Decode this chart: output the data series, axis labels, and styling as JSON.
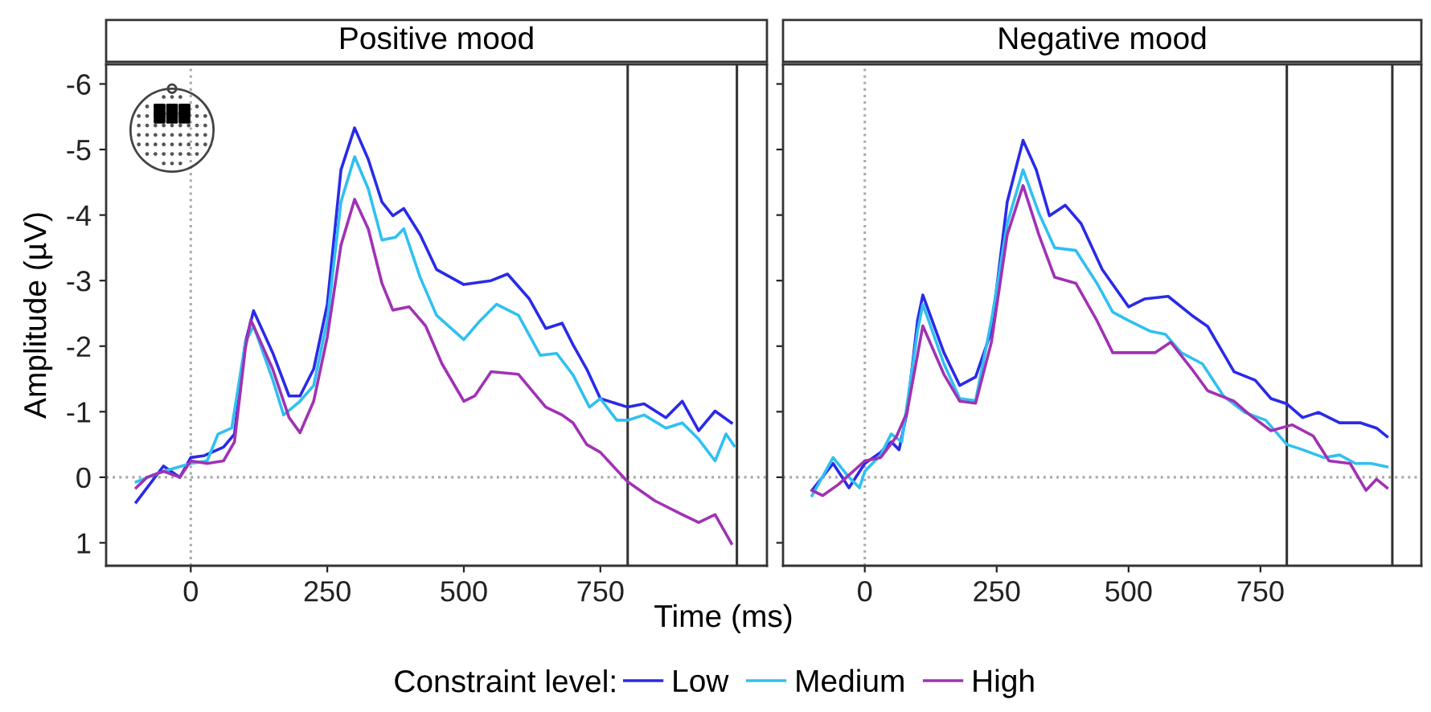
{
  "chart_data": [
    {
      "type": "line",
      "title": "Positive mood",
      "ylabel": "Amplitude (µV)",
      "xlabel": "Time (ms)",
      "legend_title": "Constraint level:",
      "legend": "bottom",
      "grid": false,
      "xlim": [
        -155,
        1055
      ],
      "xticks": [
        0,
        250,
        500,
        750
      ],
      "ylim": [
        1.35,
        -6.3
      ],
      "yticks": [
        -6,
        -5,
        -4,
        -3,
        -2,
        -1,
        0,
        1
      ],
      "ref_lines": [
        {
          "axis": "x",
          "value": 0,
          "color": "#aaaaaa",
          "line_style": "dotted"
        },
        {
          "axis": "y",
          "value": 0,
          "color": "#aaaaaa",
          "line_style": "dotted"
        },
        {
          "axis": "x",
          "value": 800,
          "color": "#333333",
          "line_style": "solid"
        },
        {
          "axis": "x",
          "value": 1000,
          "color": "#333333",
          "line_style": "solid"
        }
      ],
      "series": [
        {
          "name": "Low",
          "color": "#2a2ae8",
          "x": [
            -100,
            -50,
            -20,
            0,
            25,
            60,
            80,
            100,
            115,
            150,
            180,
            200,
            225,
            250,
            275,
            300,
            325,
            350,
            370,
            390,
            420,
            450,
            500,
            550,
            580,
            620,
            650,
            680,
            700,
            725,
            750,
            800,
            830,
            870,
            900,
            930,
            960,
            990
          ],
          "values": [
            0.38,
            -0.17,
            0,
            -0.3,
            -0.33,
            -0.46,
            -0.66,
            -2.06,
            -2.54,
            -1.9,
            -1.24,
            -1.24,
            -1.65,
            -2.64,
            -4.69,
            -5.33,
            -4.85,
            -4.2,
            -3.99,
            -4.1,
            -3.7,
            -3.17,
            -2.94,
            -3.0,
            -3.1,
            -2.72,
            -2.27,
            -2.35,
            -2.02,
            -1.65,
            -1.2,
            -1.07,
            -1.12,
            -0.91,
            -1.16,
            -0.71,
            -1.01,
            -0.83
          ]
        },
        {
          "name": "Medium",
          "color": "#30c0f0",
          "x": [
            -100,
            -50,
            0,
            30,
            50,
            75,
            100,
            115,
            150,
            170,
            200,
            225,
            250,
            275,
            300,
            325,
            350,
            375,
            390,
            420,
            450,
            500,
            530,
            560,
            600,
            640,
            670,
            700,
            730,
            750,
            780,
            800,
            830,
            870,
            900,
            930,
            960,
            980,
            995
          ],
          "values": [
            0.07,
            -0.09,
            -0.21,
            -0.25,
            -0.66,
            -0.75,
            -2.06,
            -2.31,
            -1.49,
            -0.95,
            -1.16,
            -1.4,
            -2.39,
            -4.2,
            -4.89,
            -4.4,
            -3.62,
            -3.66,
            -3.79,
            -3.05,
            -2.47,
            -2.1,
            -2.39,
            -2.64,
            -2.47,
            -1.86,
            -1.89,
            -1.56,
            -1.07,
            -1.2,
            -0.87,
            -0.87,
            -0.95,
            -0.75,
            -0.83,
            -0.58,
            -0.25,
            -0.66,
            -0.48
          ]
        },
        {
          "name": "High",
          "color": "#a032b4",
          "x": [
            -100,
            -80,
            -50,
            -20,
            0,
            30,
            60,
            80,
            100,
            110,
            150,
            180,
            200,
            225,
            250,
            275,
            300,
            325,
            350,
            370,
            400,
            430,
            460,
            500,
            520,
            550,
            600,
            650,
            680,
            700,
            725,
            750,
            800,
            850,
            900,
            930,
            960,
            990
          ],
          "values": [
            0.16,
            0,
            -0.09,
            0,
            -0.25,
            -0.21,
            -0.25,
            -0.54,
            -1.97,
            -2.4,
            -1.65,
            -0.91,
            -0.68,
            -1.16,
            -2.14,
            -3.54,
            -4.24,
            -3.79,
            -2.96,
            -2.55,
            -2.6,
            -2.31,
            -1.73,
            -1.16,
            -1.24,
            -1.61,
            -1.57,
            -1.07,
            -0.95,
            -0.83,
            -0.5,
            -0.38,
            0.07,
            0.36,
            0.57,
            0.69,
            0.57,
            1.01
          ]
        }
      ]
    },
    {
      "type": "line",
      "title": "Negative mood",
      "tick_labels": "x",
      "grid": false,
      "xlim": [
        -155,
        1055
      ],
      "xticks": [
        0,
        250,
        500,
        750
      ],
      "ylim": [
        1.35,
        -6.3
      ],
      "yticks": [
        -6,
        -5,
        -4,
        -3,
        -2,
        -1,
        0,
        1
      ],
      "ref_lines": [
        {
          "axis": "x",
          "value": 0,
          "color": "#aaaaaa",
          "line_style": "dotted"
        },
        {
          "axis": "y",
          "value": 0,
          "color": "#aaaaaa",
          "line_style": "dotted"
        },
        {
          "axis": "x",
          "value": 800,
          "color": "#333333",
          "line_style": "solid"
        },
        {
          "axis": "x",
          "value": 1000,
          "color": "#333333",
          "line_style": "solid"
        }
      ],
      "series": [
        {
          "color": "#2a2ae8",
          "x": [
            -100,
            -60,
            -30,
            0,
            30,
            50,
            65,
            80,
            100,
            110,
            150,
            180,
            210,
            240,
            270,
            300,
            325,
            350,
            380,
            410,
            450,
            500,
            530,
            575,
            620,
            650,
            700,
            740,
            770,
            800,
            830,
            860,
            900,
            940,
            970,
            990
          ],
          "values": [
            0.2,
            -0.21,
            0.16,
            -0.21,
            -0.38,
            -0.54,
            -0.42,
            -0.99,
            -2.39,
            -2.78,
            -1.9,
            -1.4,
            -1.53,
            -2.23,
            -4.2,
            -5.14,
            -4.69,
            -3.99,
            -4.15,
            -3.87,
            -3.17,
            -2.6,
            -2.72,
            -2.76,
            -2.47,
            -2.3,
            -1.61,
            -1.48,
            -1.2,
            -1.12,
            -0.91,
            -0.99,
            -0.83,
            -0.83,
            -0.75,
            -0.62
          ]
        },
        {
          "color": "#30c0f0",
          "x": [
            -100,
            -60,
            -30,
            -10,
            0,
            30,
            50,
            70,
            100,
            110,
            150,
            180,
            210,
            240,
            270,
            300,
            330,
            360,
            400,
            440,
            470,
            500,
            540,
            570,
            600,
            640,
            680,
            720,
            760,
            800,
            830,
            870,
            900,
            930,
            960,
            990
          ],
          "values": [
            0.28,
            -0.3,
            0,
            0.16,
            -0.09,
            -0.34,
            -0.66,
            -0.54,
            -2.23,
            -2.64,
            -1.73,
            -1.2,
            -1.17,
            -2.39,
            -3.87,
            -4.69,
            -4.03,
            -3.5,
            -3.46,
            -2.96,
            -2.52,
            -2.39,
            -2.23,
            -2.18,
            -1.9,
            -1.73,
            -1.24,
            -0.99,
            -0.87,
            -0.5,
            -0.42,
            -0.3,
            -0.34,
            -0.21,
            -0.21,
            -0.16
          ]
        },
        {
          "color": "#a032b4",
          "x": [
            -100,
            -80,
            -50,
            0,
            30,
            60,
            80,
            110,
            150,
            180,
            210,
            240,
            270,
            300,
            330,
            360,
            400,
            440,
            470,
            500,
            550,
            580,
            620,
            650,
            700,
            730,
            770,
            810,
            850,
            880,
            920,
            950,
            970,
            990
          ],
          "values": [
            0.2,
            0.28,
            0.11,
            -0.25,
            -0.3,
            -0.62,
            -0.99,
            -2.31,
            -1.57,
            -1.16,
            -1.13,
            -2.06,
            -3.7,
            -4.45,
            -3.7,
            -3.05,
            -2.96,
            -2.39,
            -1.9,
            -1.9,
            -1.9,
            -2.06,
            -1.65,
            -1.32,
            -1.16,
            -0.95,
            -0.71,
            -0.8,
            -0.63,
            -0.25,
            -0.21,
            0.2,
            0.03,
            0.16
          ]
        }
      ]
    }
  ]
}
